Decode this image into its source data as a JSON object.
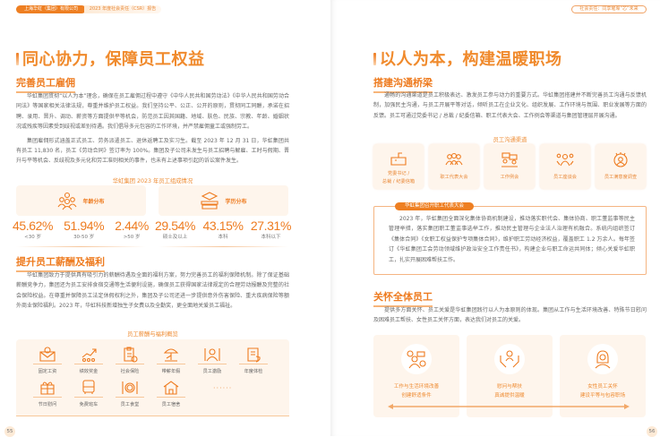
{
  "header": {
    "company": "上海华虹（集团）有限公司",
    "report": "2023 年度社会责任（CSR）报告",
    "right_tag": "社会责任：同享璀璨“芯”未来"
  },
  "left": {
    "title": "同心协力，保障员工权益",
    "s1": {
      "heading": "完善员工雇佣",
      "p1": "华虹集团贯彻“以人为本”理念，确保在员工雇佣过程中遵守《中华人民共和国劳动法》《中华人民共和国劳动合同法》等国家相关法律法规，尊重并维护员工权益。我们坚持公平、公正、公开的原则，贯彻同工同酬，承诺在招聘、录用、晋升、调动、薪资等方面提供平等机会，防范员工因其国籍、地域、肤色、民族、宗教、年龄、婚姻状况或残疾等因素受到歧视或差别待遇。我们倡导多元包容的工作环境，并严禁雇佣童工或强制劳工。",
      "p2": "集团雇佣形式涵盖正式员工、劳务派遣员工、退休返聘工及实习生。截至 2023 年 12 月 31 日，华虹集团共有员工 11,830 名，员工《劳动合同》签订率为 100%。集团及子公司未发生与员工招聘与解雇、工时与假期、晋升与平等机会、反歧视及多元化和劳工准则相关的事件，也未有上述事项引起的诉讼案件发生。"
    },
    "composition": {
      "title": "华虹集团 2023 年员工组成情况",
      "age": {
        "label": "年龄分布",
        "stats": [
          {
            "value": "45.62%",
            "label": "<30 岁"
          },
          {
            "value": "51.94%",
            "label": "30-50 岁"
          },
          {
            "value": "2.44%",
            "label": ">50 岁"
          }
        ]
      },
      "edu": {
        "label": "学历分布",
        "stats": [
          {
            "value": "29.54%",
            "label": "硕士及以上"
          },
          {
            "value": "43.15%",
            "label": "本科"
          },
          {
            "value": "27.31%",
            "label": "本科以下"
          }
        ]
      }
    },
    "s2": {
      "heading": "提升员工薪酬及福利",
      "p1": "华虹集团致力于提供具有吸引力的薪酬待遇及全面的福利方案，努力完善员工的福利保障机制。除了保证基础薪酬竞争力，集团还为员工安排食宿交通等生活便利设施，确保员工获得国家法律规定的合理劳动报酬及完整的社会保险权益。在尊重并保障员工法定休假权利之外，集团及子公司还进一步提供意外伤害保险、重大疾病保险等额外商业保险福利。2023 年，华虹科技新增独生子女费以及全勤奖，更全面地关爱员工福祉。"
    },
    "benefits": {
      "title": "员工薪酬与福利概览",
      "items": [
        "固定工资",
        "绩效奖金",
        "社会保险",
        "带薪年假",
        "员工激励",
        "年度体检",
        "节日慰问",
        "免费班车",
        "员工食堂",
        "员工宿舍"
      ],
      "more": "······"
    },
    "page": "55"
  },
  "right": {
    "title": "以人为本，构建温暖职场",
    "s1": {
      "heading": "搭建沟通桥梁",
      "p1": "通畅的沟通渠道是员工积极表达、激发员工参与动力的重要方式。华虹集团搭建并不断完善员工沟通与反馈机制，加强民主沟通，与员工开展平等对话，倾听员工在企业文化、组织发展、工作环境与氛围、职业发展等方面的反馈。员工可通过党委书记 / 总裁 / 纪委信箱、职工代表大会、工作例会等渠道与集团管理层开展沟通。"
    },
    "channels": {
      "title": "员工沟通渠道",
      "items": [
        [
          "党委书记 /",
          "总裁 / 纪委信箱"
        ],
        [
          "职工代表大会"
        ],
        [
          "工作例会"
        ],
        [
          "员工座谈会"
        ],
        [
          "员工满意度调查"
        ]
      ]
    },
    "case": {
      "tag": "华虹集团召开职工代表大会",
      "text": "2023 年，华虹集团全面深化集体协商机制建设，推动落实职代会、集体协商、职工董监事等民主管理举措，落实集团职工董监事选举工作，推动民主管理与企业法人治理有机融合。系统内组织签订《集体合同》《女职工权益保护专项集体合同》，维护职工劳动经济权益，覆盖职工 1.2 万余人。每年签订《华虹集团工会劳动领域维护政治安全工作责任书》，构建企业与职工命运共同体；倾心关爱华虹职工，扎实开展困难帮扶工作。"
    },
    "s2": {
      "heading": "关怀全体员工",
      "p1": "提供多方面关怀、员工关爱是华虹集团践行以人为本原则的体现。集团从工作与生活环境改善、特殊节日慰问及困难员工帮扶、女性员工关怀方面，表达我们对员工的关爱。"
    },
    "care": [
      [
        "工作与生活环境改善",
        "创建舒适条件"
      ],
      [
        "慰问与帮扶",
        "真诚提供温暖"
      ],
      [
        "女性员工关怀",
        "建设平等与包容职场"
      ]
    ],
    "page": "56"
  },
  "colors": {
    "accent": "#EE7B1F",
    "light": "#FEF5EC"
  }
}
